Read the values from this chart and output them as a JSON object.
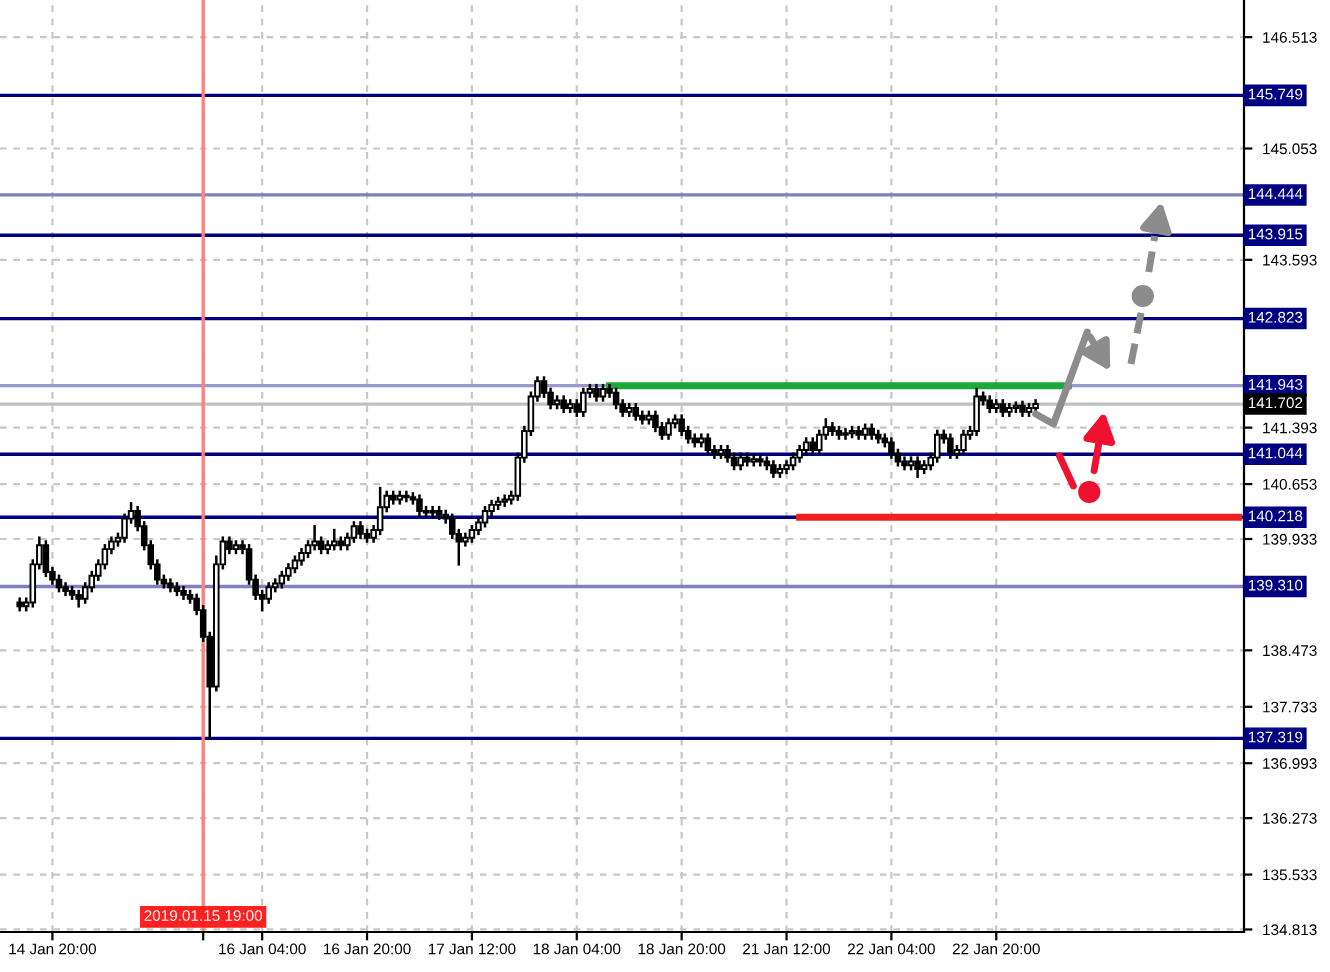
{
  "chart_data": {
    "type": "candlestick",
    "categories": [
      null,
      null,
      null,
      null,
      null,
      "14 Jan 20:00",
      null,
      null,
      null,
      null,
      null,
      null,
      null,
      null,
      null,
      null,
      null,
      null,
      null,
      null,
      null,
      null,
      null,
      null,
      null,
      null,
      null,
      null,
      "2019.01.15 19:00",
      null,
      null,
      null,
      null,
      null,
      null,
      null,
      null,
      "16 Jan 04:00",
      null,
      null,
      null,
      null,
      null,
      null,
      null,
      null,
      null,
      null,
      null,
      null,
      null,
      null,
      null,
      "16 Jan 20:00",
      null,
      null,
      null,
      null,
      null,
      null,
      null,
      null,
      null,
      null,
      null,
      null,
      null,
      null,
      null,
      "17 Jan 12:00",
      null,
      null,
      null,
      null,
      null,
      null,
      null,
      null,
      null,
      null,
      null,
      null,
      null,
      null,
      null,
      "18 Jan 04:00",
      null,
      null,
      null,
      null,
      null,
      null,
      null,
      null,
      null,
      null,
      null,
      null,
      null,
      null,
      null,
      "18 Jan 20:00",
      null,
      null,
      null,
      null,
      null,
      null,
      null,
      null,
      null,
      null,
      null,
      null,
      null,
      null,
      null,
      "21 Jan 12:00",
      null,
      null,
      null,
      null,
      null,
      null,
      null,
      null,
      null,
      null,
      null,
      null,
      null,
      null,
      null,
      "22 Jan 04:00",
      null,
      null,
      null,
      null,
      null,
      null,
      null,
      null,
      null,
      null,
      null,
      null,
      null,
      null,
      null,
      "22 Jan 20:00",
      null,
      null,
      null,
      null,
      null,
      null,
      null,
      null,
      null,
      null,
      null,
      null,
      null,
      null,
      null,
      null,
      null,
      null,
      null,
      null,
      null,
      null,
      null,
      null,
      null,
      null,
      null,
      null,
      null,
      null,
      null,
      null,
      null,
      null,
      null,
      null,
      null
    ],
    "color": "#000000",
    "ohlc": [
      [
        139.1,
        139.15,
        139.0,
        139.05
      ],
      [
        139.05,
        139.15,
        139.0,
        139.1
      ],
      [
        139.1,
        139.65,
        139.05,
        139.6
      ],
      [
        139.6,
        139.95,
        139.55,
        139.85
      ],
      [
        139.85,
        139.9,
        139.45,
        139.5
      ],
      [
        139.5,
        139.55,
        139.35,
        139.4
      ],
      [
        139.4,
        139.45,
        139.25,
        139.3
      ],
      [
        139.3,
        139.35,
        139.2,
        139.25
      ],
      [
        139.25,
        139.3,
        139.15,
        139.2
      ],
      [
        139.2,
        139.25,
        139.05,
        139.15
      ],
      [
        139.15,
        139.35,
        139.1,
        139.3
      ],
      [
        139.3,
        139.5,
        139.25,
        139.45
      ],
      [
        139.45,
        139.65,
        139.4,
        139.6
      ],
      [
        139.6,
        139.85,
        139.55,
        139.8
      ],
      [
        139.8,
        139.95,
        139.75,
        139.9
      ],
      [
        139.9,
        140.0,
        139.85,
        139.95
      ],
      [
        139.95,
        140.25,
        139.9,
        140.2
      ],
      [
        140.2,
        140.4,
        140.15,
        140.3
      ],
      [
        140.3,
        140.35,
        140.05,
        140.1
      ],
      [
        140.1,
        140.15,
        139.8,
        139.85
      ],
      [
        139.85,
        139.9,
        139.55,
        139.6
      ],
      [
        139.6,
        139.65,
        139.35,
        139.4
      ],
      [
        139.4,
        139.45,
        139.3,
        139.35
      ],
      [
        139.35,
        139.4,
        139.25,
        139.3
      ],
      [
        139.3,
        139.35,
        139.2,
        139.25
      ],
      [
        139.25,
        139.3,
        139.15,
        139.2
      ],
      [
        139.2,
        139.25,
        139.1,
        139.15
      ],
      [
        139.15,
        139.2,
        138.95,
        139.0
      ],
      [
        139.0,
        139.05,
        138.6,
        138.65
      ],
      [
        138.65,
        138.7,
        137.319,
        138.0
      ],
      [
        138.0,
        139.7,
        137.95,
        139.6
      ],
      [
        139.6,
        139.95,
        139.55,
        139.9
      ],
      [
        139.9,
        139.95,
        139.75,
        139.8
      ],
      [
        139.8,
        139.9,
        139.75,
        139.85
      ],
      [
        139.85,
        139.9,
        139.75,
        139.8
      ],
      [
        139.8,
        139.85,
        139.35,
        139.4
      ],
      [
        139.4,
        139.45,
        139.15,
        139.2
      ],
      [
        139.2,
        139.25,
        139.0,
        139.15
      ],
      [
        139.15,
        139.35,
        139.1,
        139.3
      ],
      [
        139.3,
        139.4,
        139.25,
        139.35
      ],
      [
        139.35,
        139.5,
        139.3,
        139.45
      ],
      [
        139.45,
        139.6,
        139.4,
        139.55
      ],
      [
        139.55,
        139.7,
        139.5,
        139.65
      ],
      [
        139.65,
        139.8,
        139.6,
        139.75
      ],
      [
        139.75,
        139.9,
        139.7,
        139.85
      ],
      [
        139.85,
        140.1,
        139.8,
        139.9
      ],
      [
        139.9,
        139.95,
        139.75,
        139.8
      ],
      [
        139.8,
        139.9,
        139.75,
        139.85
      ],
      [
        139.85,
        140.05,
        139.8,
        139.9
      ],
      [
        139.9,
        139.95,
        139.8,
        139.85
      ],
      [
        139.85,
        140.0,
        139.8,
        139.95
      ],
      [
        139.95,
        140.15,
        139.9,
        140.1
      ],
      [
        140.1,
        140.15,
        139.95,
        140.0
      ],
      [
        140.0,
        140.05,
        139.9,
        139.95
      ],
      [
        139.95,
        140.1,
        139.9,
        140.05
      ],
      [
        140.05,
        140.6,
        140.0,
        140.35
      ],
      [
        140.35,
        140.55,
        140.3,
        140.5
      ],
      [
        140.5,
        140.55,
        140.4,
        140.45
      ],
      [
        140.45,
        140.55,
        140.4,
        140.5
      ],
      [
        140.5,
        140.55,
        140.43,
        140.48
      ],
      [
        140.48,
        140.53,
        140.4,
        140.45
      ],
      [
        140.45,
        140.5,
        140.25,
        140.3
      ],
      [
        140.3,
        140.35,
        140.23,
        140.28
      ],
      [
        140.28,
        140.35,
        140.23,
        140.3
      ],
      [
        140.3,
        140.35,
        140.2,
        140.25
      ],
      [
        140.25,
        140.3,
        140.15,
        140.2
      ],
      [
        140.2,
        140.25,
        139.95,
        140.0
      ],
      [
        140.0,
        140.05,
        139.6,
        139.9
      ],
      [
        139.9,
        140.0,
        139.85,
        139.95
      ],
      [
        139.95,
        140.1,
        139.9,
        140.05
      ],
      [
        140.05,
        140.2,
        140.0,
        140.15
      ],
      [
        140.15,
        140.35,
        140.1,
        140.3
      ],
      [
        140.3,
        140.43,
        140.25,
        140.38
      ],
      [
        140.38,
        140.47,
        140.33,
        140.42
      ],
      [
        140.42,
        140.5,
        140.37,
        140.45
      ],
      [
        140.45,
        140.55,
        140.4,
        140.5
      ],
      [
        140.5,
        141.05,
        140.45,
        141.0
      ],
      [
        141.0,
        141.4,
        140.95,
        141.35
      ],
      [
        141.35,
        141.85,
        141.3,
        141.8
      ],
      [
        141.8,
        142.05,
        141.75,
        142.0
      ],
      [
        142.0,
        142.05,
        141.8,
        141.85
      ],
      [
        141.85,
        141.9,
        141.65,
        141.7
      ],
      [
        141.7,
        141.8,
        141.65,
        141.75
      ],
      [
        141.75,
        141.8,
        141.6,
        141.65
      ],
      [
        141.65,
        141.75,
        141.6,
        141.7
      ],
      [
        141.7,
        141.75,
        141.55,
        141.6
      ],
      [
        141.6,
        141.9,
        141.55,
        141.85
      ],
      [
        141.85,
        141.95,
        141.8,
        141.9
      ],
      [
        141.9,
        141.95,
        141.75,
        141.8
      ],
      [
        141.8,
        141.95,
        141.75,
        141.9
      ],
      [
        141.9,
        141.95,
        141.8,
        141.85
      ],
      [
        141.85,
        141.9,
        141.65,
        141.7
      ],
      [
        141.7,
        141.75,
        141.55,
        141.6
      ],
      [
        141.6,
        141.7,
        141.55,
        141.65
      ],
      [
        141.65,
        141.7,
        141.5,
        141.55
      ],
      [
        141.55,
        141.6,
        141.45,
        141.5
      ],
      [
        141.5,
        141.6,
        141.45,
        141.55
      ],
      [
        141.55,
        141.6,
        141.35,
        141.4
      ],
      [
        141.4,
        141.45,
        141.25,
        141.3
      ],
      [
        141.3,
        141.5,
        141.25,
        141.45
      ],
      [
        141.45,
        141.55,
        141.4,
        141.5
      ],
      [
        141.5,
        141.55,
        141.3,
        141.35
      ],
      [
        141.35,
        141.4,
        141.2,
        141.25
      ],
      [
        141.25,
        141.3,
        141.15,
        141.2
      ],
      [
        141.2,
        141.3,
        141.15,
        141.25
      ],
      [
        141.25,
        141.3,
        141.05,
        141.1
      ],
      [
        141.1,
        141.15,
        141.0,
        141.05
      ],
      [
        141.05,
        141.15,
        141.0,
        141.1
      ],
      [
        141.1,
        141.15,
        140.95,
        141.0
      ],
      [
        141.0,
        141.05,
        140.85,
        140.9
      ],
      [
        140.9,
        141.05,
        140.85,
        141.0
      ],
      [
        141.0,
        141.05,
        140.9,
        140.95
      ],
      [
        140.95,
        141.03,
        140.9,
        140.98
      ],
      [
        140.98,
        141.03,
        140.9,
        140.95
      ],
      [
        140.95,
        141.0,
        140.85,
        140.9
      ],
      [
        140.9,
        140.95,
        140.75,
        140.8
      ],
      [
        140.8,
        140.9,
        140.75,
        140.85
      ],
      [
        140.85,
        140.95,
        140.8,
        140.9
      ],
      [
        140.9,
        141.05,
        140.85,
        141.0
      ],
      [
        141.0,
        141.15,
        140.95,
        141.1
      ],
      [
        141.1,
        141.25,
        141.05,
        141.2
      ],
      [
        141.2,
        141.25,
        141.05,
        141.1
      ],
      [
        141.1,
        141.35,
        141.05,
        141.3
      ],
      [
        141.3,
        141.5,
        141.25,
        141.4
      ],
      [
        141.4,
        141.45,
        141.3,
        141.35
      ],
      [
        141.35,
        141.4,
        141.25,
        141.3
      ],
      [
        141.3,
        141.37,
        141.25,
        141.32
      ],
      [
        141.32,
        141.4,
        141.27,
        141.35
      ],
      [
        141.35,
        141.4,
        141.25,
        141.3
      ],
      [
        141.3,
        141.43,
        141.25,
        141.38
      ],
      [
        141.38,
        141.43,
        141.25,
        141.3
      ],
      [
        141.3,
        141.35,
        141.2,
        141.25
      ],
      [
        141.25,
        141.3,
        141.15,
        141.2
      ],
      [
        141.2,
        141.25,
        141.0,
        141.05
      ],
      [
        141.05,
        141.1,
        140.9,
        140.95
      ],
      [
        140.95,
        141.0,
        140.85,
        140.9
      ],
      [
        140.9,
        141.0,
        140.85,
        140.95
      ],
      [
        140.95,
        141.0,
        140.75,
        140.85
      ],
      [
        140.85,
        140.95,
        140.8,
        140.9
      ],
      [
        140.9,
        141.05,
        140.85,
        141.0
      ],
      [
        141.0,
        141.35,
        140.95,
        141.3
      ],
      [
        141.3,
        141.35,
        141.2,
        141.25
      ],
      [
        141.25,
        141.3,
        141.0,
        141.05
      ],
      [
        141.05,
        141.15,
        141.0,
        141.1
      ],
      [
        141.1,
        141.35,
        141.05,
        141.3
      ],
      [
        141.3,
        141.4,
        141.25,
        141.35
      ],
      [
        141.35,
        141.9,
        141.3,
        141.8
      ],
      [
        141.8,
        141.85,
        141.7,
        141.75
      ],
      [
        141.75,
        141.8,
        141.6,
        141.65
      ],
      [
        141.65,
        141.75,
        141.6,
        141.7
      ],
      [
        141.7,
        141.75,
        141.55,
        141.6
      ],
      [
        141.6,
        141.7,
        141.55,
        141.65
      ],
      [
        141.65,
        141.72,
        141.6,
        141.68
      ],
      [
        141.68,
        141.73,
        141.55,
        141.6
      ],
      [
        141.6,
        141.7,
        141.55,
        141.65
      ],
      [
        141.65,
        141.75,
        141.6,
        141.702
      ],
      null,
      null,
      null,
      null,
      null,
      null,
      null,
      null,
      null,
      null,
      null,
      null,
      null,
      null,
      null,
      null,
      null,
      null,
      null,
      null,
      null,
      null,
      null,
      null,
      null,
      null,
      null,
      null,
      null,
      null,
      null
    ],
    "series": [
      {
        "type": "line",
        "color": "#1fa83a",
        "values": [
          null,
          null,
          null,
          null,
          null,
          null,
          null,
          null,
          null,
          null,
          null,
          null,
          null,
          null,
          null,
          null,
          null,
          null,
          null,
          null,
          null,
          null,
          null,
          null,
          null,
          null,
          null,
          null,
          null,
          null,
          null,
          null,
          null,
          null,
          null,
          null,
          null,
          null,
          null,
          null,
          null,
          null,
          null,
          null,
          null,
          null,
          null,
          null,
          null,
          null,
          null,
          null,
          null,
          null,
          null,
          null,
          null,
          null,
          null,
          null,
          null,
          null,
          null,
          null,
          null,
          null,
          null,
          null,
          null,
          null,
          null,
          null,
          null,
          null,
          null,
          null,
          null,
          null,
          null,
          null,
          null,
          null,
          null,
          null,
          null,
          null,
          null,
          null,
          null,
          null,
          141.943,
          141.943,
          141.943,
          141.943,
          141.943,
          141.943,
          141.943,
          141.943,
          141.943,
          141.943,
          141.943,
          141.943,
          141.943,
          141.943,
          141.943,
          141.943,
          141.943,
          141.943,
          141.943,
          141.943,
          141.943,
          141.943,
          141.943,
          141.943,
          141.943,
          141.943,
          141.943,
          141.943,
          141.943,
          141.943,
          141.943,
          141.943,
          141.943,
          141.943,
          141.943,
          141.943,
          141.943,
          141.943,
          141.943,
          141.943,
          141.943,
          141.943,
          141.943,
          141.943,
          141.943,
          141.943,
          141.943,
          141.943,
          141.943,
          141.943,
          141.943,
          141.943,
          141.943,
          141.943,
          141.943,
          141.943,
          141.943,
          141.943,
          141.943,
          141.943,
          141.943,
          141.943,
          141.943,
          141.943,
          141.943,
          141.943,
          141.943,
          141.943,
          141.943,
          141.943,
          141.943,
          null,
          null,
          null,
          null,
          null,
          null,
          null,
          null,
          null,
          null,
          null,
          null,
          null,
          null,
          null,
          null,
          null,
          null,
          null,
          null,
          null,
          null,
          null,
          null,
          null,
          null
        ]
      },
      {
        "type": "line",
        "color": "#f02020",
        "values": [
          null,
          null,
          null,
          null,
          null,
          null,
          null,
          null,
          null,
          null,
          null,
          null,
          null,
          null,
          null,
          null,
          null,
          null,
          null,
          null,
          null,
          null,
          null,
          null,
          null,
          null,
          null,
          null,
          null,
          null,
          null,
          null,
          null,
          null,
          null,
          null,
          null,
          null,
          null,
          null,
          null,
          null,
          null,
          null,
          null,
          null,
          null,
          null,
          null,
          null,
          null,
          null,
          null,
          null,
          null,
          null,
          null,
          null,
          null,
          null,
          null,
          null,
          null,
          null,
          null,
          null,
          null,
          null,
          null,
          null,
          null,
          null,
          null,
          null,
          null,
          null,
          null,
          null,
          null,
          null,
          null,
          null,
          null,
          null,
          null,
          null,
          null,
          null,
          null,
          null,
          null,
          null,
          null,
          null,
          null,
          null,
          null,
          null,
          null,
          null,
          null,
          null,
          null,
          null,
          null,
          null,
          null,
          null,
          null,
          null,
          null,
          null,
          null,
          null,
          null,
          null,
          null,
          null,
          null,
          140.218,
          140.218,
          140.218,
          140.218,
          140.218,
          140.218,
          140.218,
          140.218,
          140.218,
          140.218,
          140.218,
          140.218,
          140.218,
          140.218,
          140.218,
          140.218,
          140.218,
          140.218,
          140.218,
          140.218,
          140.218,
          140.218,
          140.218,
          140.218,
          140.218,
          140.218,
          140.218,
          140.218,
          140.218,
          140.218,
          140.218,
          140.218,
          140.218,
          140.218,
          140.218,
          140.218,
          140.218,
          140.218,
          140.218,
          140.218,
          140.218,
          140.218,
          140.218,
          140.218,
          140.218,
          140.218,
          140.218,
          140.218,
          140.218,
          140.218,
          140.218,
          140.218,
          140.218,
          140.218,
          140.218,
          140.218,
          140.218,
          140.218,
          140.218,
          140.218,
          140.218,
          140.218,
          140.218,
          140.218,
          140.218,
          140.218,
          140.218,
          140.218
        ]
      }
    ],
    "ylim": [
      134.78,
      147.0
    ],
    "yticks": [
      146.513,
      145.053,
      143.593,
      141.393,
      140.653,
      139.933,
      138.473,
      137.733,
      136.993,
      136.273,
      135.533,
      134.813
    ],
    "ref_lines": [
      {
        "axis": "y",
        "value": 145.749,
        "label": "145.749",
        "color": "#000080"
      },
      {
        "axis": "y",
        "value": 144.444,
        "label": "144.444",
        "color": "#8080c0"
      },
      {
        "axis": "y",
        "value": 143.915,
        "label": "143.915",
        "color": "#000080"
      },
      {
        "axis": "y",
        "value": 142.823,
        "label": "142.823",
        "color": "#000080"
      },
      {
        "axis": "y",
        "value": 141.943,
        "label": "141.943",
        "color": "#9999cc"
      },
      {
        "axis": "y",
        "value": 141.702,
        "label": "141.702",
        "color": "#c0c0c0"
      },
      {
        "axis": "y",
        "value": 141.044,
        "label": "141.044",
        "color": "#000080"
      },
      {
        "axis": "y",
        "value": 140.218,
        "label": "140.218",
        "color": "#000080"
      },
      {
        "axis": "y",
        "value": 139.31,
        "label": "139.310",
        "color": "#8080c0"
      },
      {
        "axis": "y",
        "value": 137.319,
        "label": "137.319",
        "color": "#000080"
      },
      {
        "axis": "x",
        "value": "2019.01.15 19:00",
        "color": "#ff8080"
      }
    ],
    "grid": true
  }
}
